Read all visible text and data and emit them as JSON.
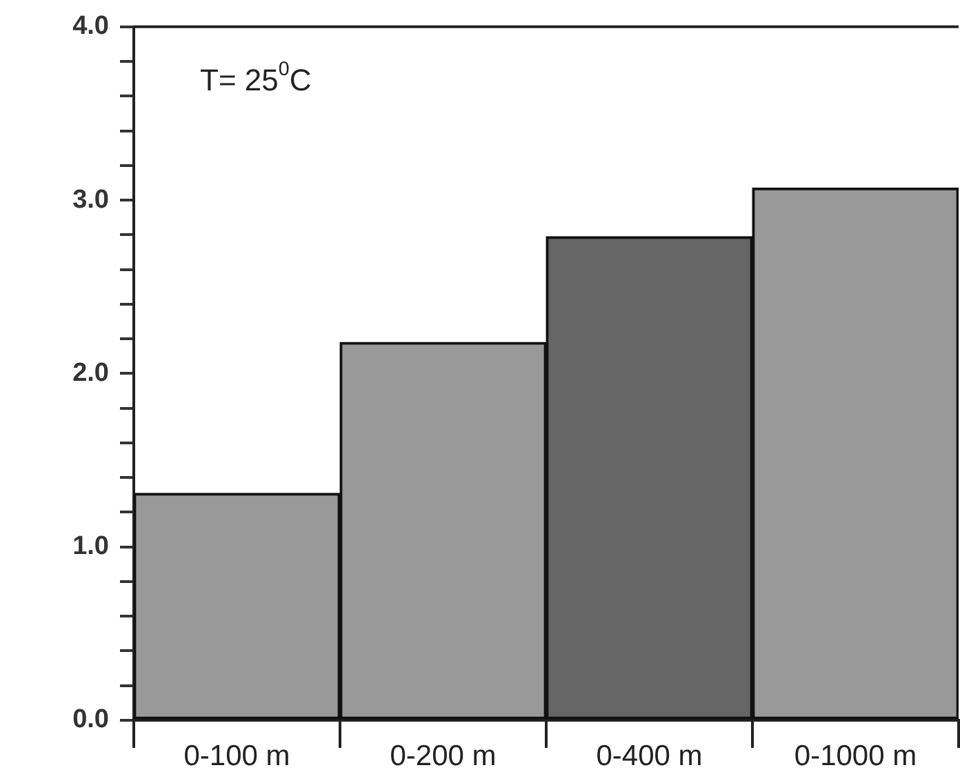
{
  "chart_data": {
    "type": "bar",
    "categories": [
      "0-100 m",
      "0-200 m",
      "0-400 m",
      "0-1000 m"
    ],
    "values": [
      1.31,
      2.18,
      2.79,
      3.07
    ],
    "colors": [
      "#999999",
      "#999999",
      "#666666",
      "#999999"
    ],
    "ylim": [
      0,
      4
    ],
    "yticks": [
      {
        "value": 0,
        "label": "0.0"
      },
      {
        "value": 0.2,
        "label": null
      },
      {
        "value": 0.4,
        "label": null
      },
      {
        "value": 0.6,
        "label": null
      },
      {
        "value": 0.8,
        "label": null
      },
      {
        "value": 1,
        "label": "1.0"
      },
      {
        "value": 1.2,
        "label": null
      },
      {
        "value": 1.4,
        "label": null
      },
      {
        "value": 1.6,
        "label": null
      },
      {
        "value": 1.8,
        "label": null
      },
      {
        "value": 2,
        "label": "2.0"
      },
      {
        "value": 2.2,
        "label": null
      },
      {
        "value": 2.4,
        "label": null
      },
      {
        "value": 2.6,
        "label": null
      },
      {
        "value": 2.8,
        "label": null
      },
      {
        "value": 3,
        "label": "3.0"
      },
      {
        "value": 3.2,
        "label": null
      },
      {
        "value": 3.4,
        "label": null
      },
      {
        "value": 3.6,
        "label": null
      },
      {
        "value": 3.8,
        "label": null
      },
      {
        "value": 4,
        "label": "4.0"
      }
    ],
    "annotations": [
      "T= 25$^{0}$C"
    ],
    "grid": false,
    "legend": false
  }
}
